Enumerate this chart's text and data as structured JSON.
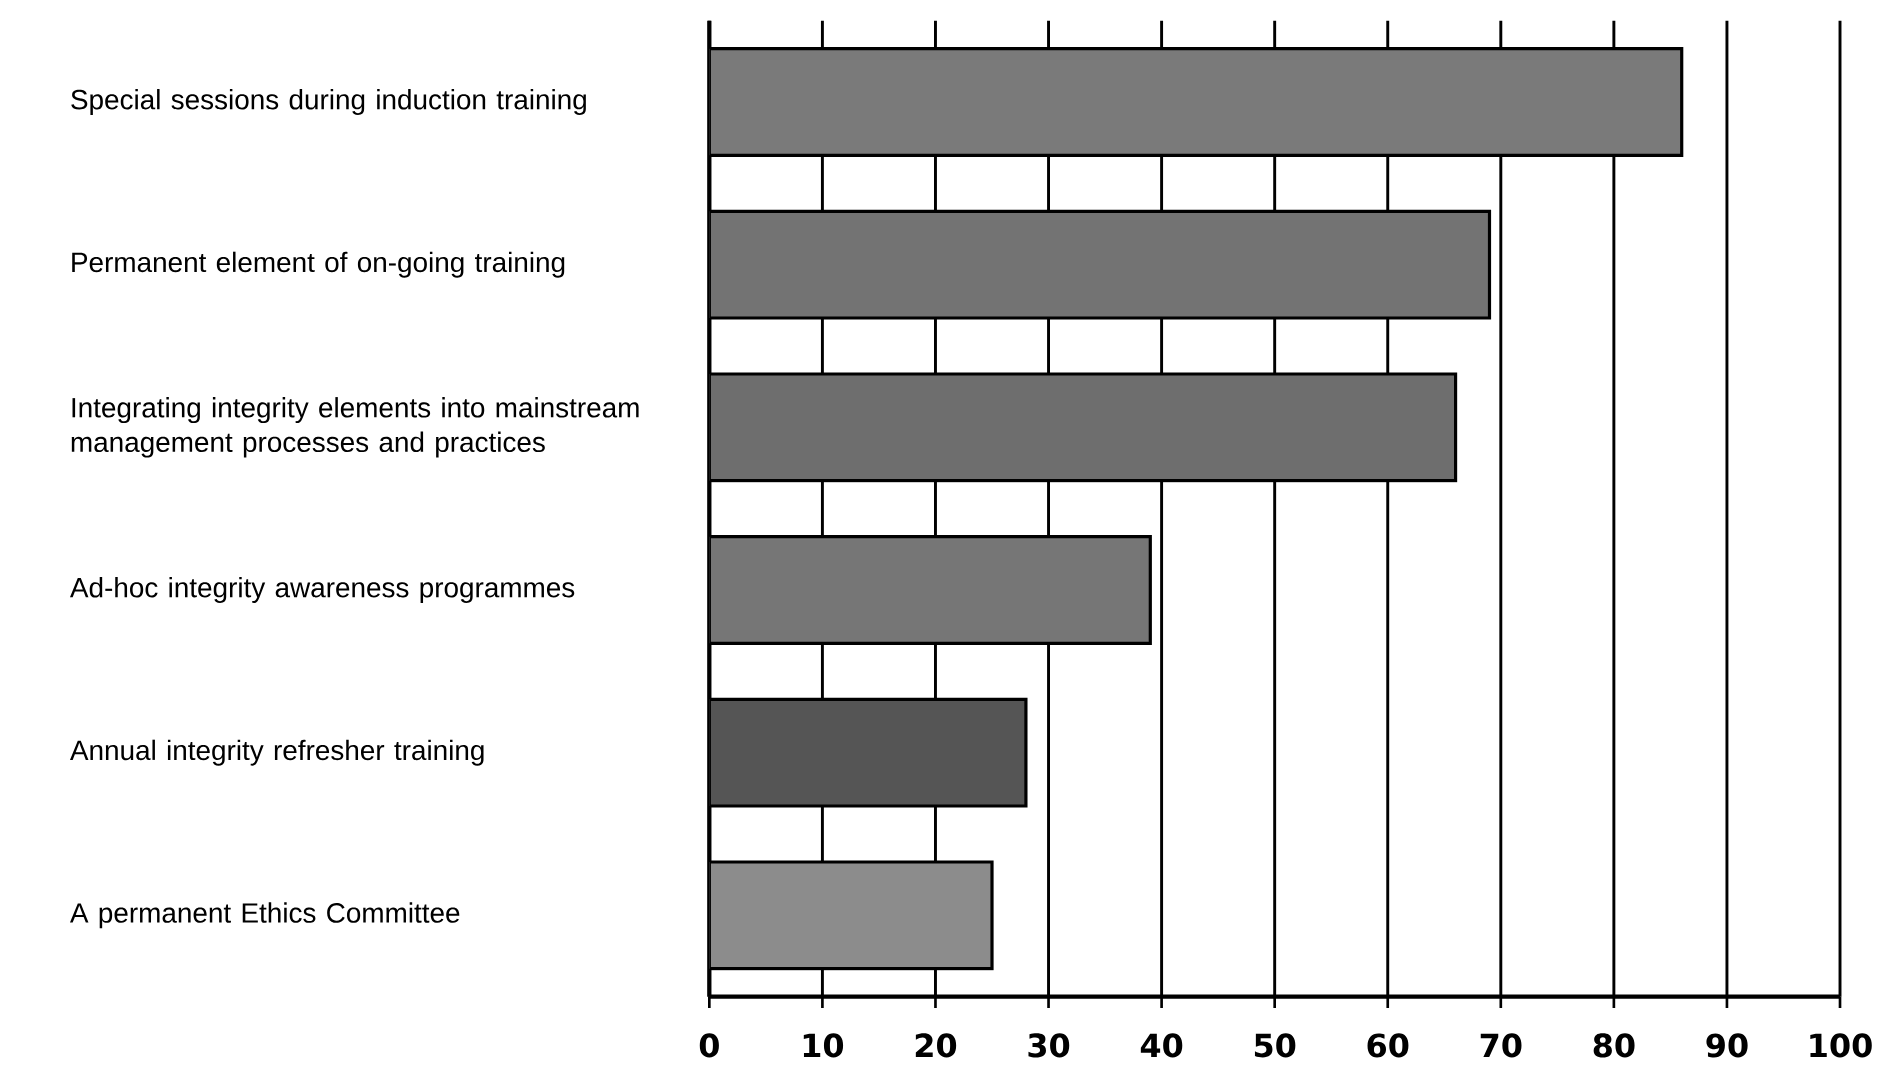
{
  "chart_data": {
    "type": "bar",
    "orientation": "horizontal",
    "categories": [
      "Special sessions during induction training",
      "Permanent element of on-going training",
      "Integrating integrity elements into mainstream management processes and practices",
      "Ad-hoc integrity awareness programmes",
      "Annual integrity refresher training",
      "A permanent Ethics Committee"
    ],
    "values": [
      86,
      69,
      66,
      39,
      28,
      25
    ],
    "colors": [
      "#7a7a7a",
      "#737373",
      "#6e6e6e",
      "#767676",
      "#555555",
      "#8c8c8c"
    ],
    "xlim": [
      0,
      100
    ],
    "xticks": [
      0,
      10,
      20,
      30,
      40,
      50,
      60,
      70,
      80,
      90,
      100
    ],
    "grid": "x"
  }
}
